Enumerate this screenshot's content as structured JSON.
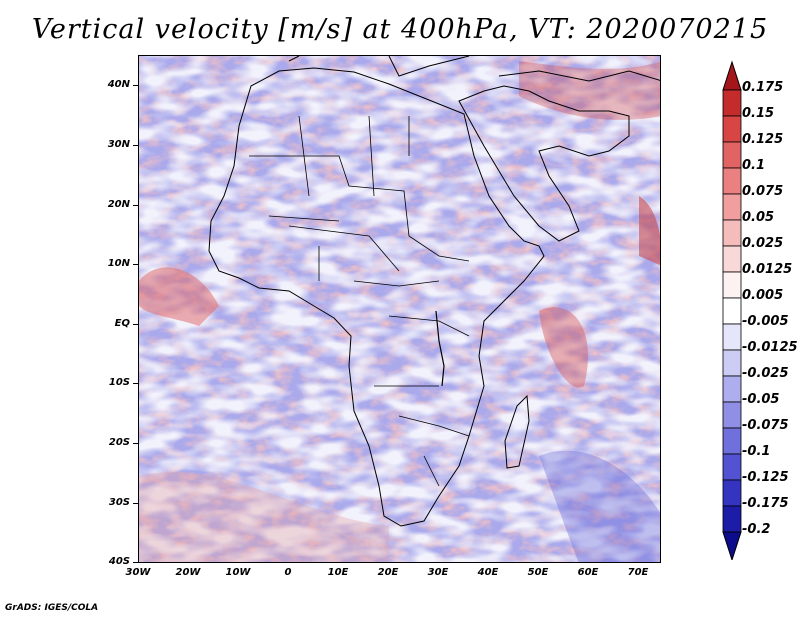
{
  "title": "Vertical velocity [m/s] at 400hPa, VT: 2020070215",
  "footer": "GrADS: IGES/COLA",
  "map": {
    "lon_range": [
      -30,
      75
    ],
    "lat_range": [
      -40,
      45
    ],
    "lat_labels": [
      "40N",
      "30N",
      "20N",
      "10N",
      "EQ",
      "10S",
      "20S",
      "30S",
      "40S"
    ],
    "lat_values": [
      40,
      30,
      20,
      10,
      0,
      -10,
      -20,
      -30,
      -40
    ],
    "lon_labels": [
      "30W",
      "20W",
      "10W",
      "0",
      "10E",
      "20E",
      "30E",
      "40E",
      "50E",
      "60E",
      "70E"
    ],
    "lon_values": [
      -30,
      -20,
      -10,
      0,
      10,
      20,
      30,
      40,
      50,
      60,
      70
    ]
  },
  "colorbar": {
    "labels": [
      "0.175",
      "0.15",
      "0.125",
      "0.1",
      "0.075",
      "0.05",
      "0.025",
      "0.0125",
      "0.005",
      "-0.005",
      "-0.0125",
      "-0.025",
      "-0.05",
      "-0.075",
      "-0.1",
      "-0.125",
      "-0.175",
      "-0.2"
    ],
    "colors": [
      "#a4161a",
      "#c42b2b",
      "#d74545",
      "#e26363",
      "#eb8080",
      "#f09e9e",
      "#f5bcbc",
      "#f9d8d8",
      "#fdf1f1",
      "#ffffff",
      "#e6e6fb",
      "#ccccf5",
      "#aeaeef",
      "#8f8fe6",
      "#7070dc",
      "#5252d2",
      "#3434c0",
      "#1c1ca6",
      "#0c0c8c"
    ]
  }
}
